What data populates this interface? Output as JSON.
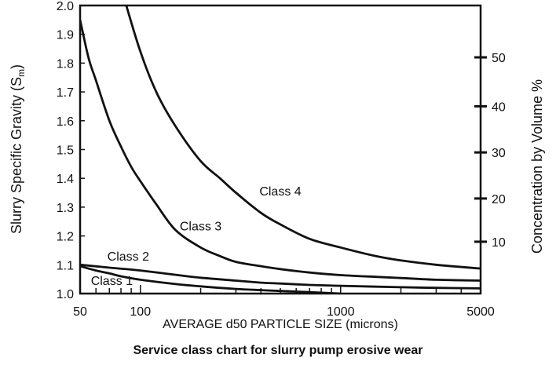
{
  "chart_data": {
    "type": "line",
    "xscale": "log",
    "xlim": [
      50,
      5000
    ],
    "ylim": [
      1.0,
      2.0
    ],
    "xlabel": "AVERAGE d50 PARTICLE SIZE (microns)",
    "ylabel_main": "Slurry Specific Gravity (S",
    "ylabel_sub": "m",
    "ylabel_close": ")",
    "y2label": "Concentration by Volume %",
    "caption": "Service class chart for slurry pump erosive wear",
    "x_ticks": [
      {
        "v": 50,
        "label": "50"
      },
      {
        "v": 60,
        "label": ""
      },
      {
        "v": 70,
        "label": ""
      },
      {
        "v": 80,
        "label": ""
      },
      {
        "v": 90,
        "label": ""
      },
      {
        "v": 100,
        "label": "100"
      },
      {
        "v": 200,
        "label": ""
      },
      {
        "v": 300,
        "label": ""
      },
      {
        "v": 400,
        "label": ""
      },
      {
        "v": 500,
        "label": ""
      },
      {
        "v": 600,
        "label": ""
      },
      {
        "v": 700,
        "label": ""
      },
      {
        "v": 800,
        "label": ""
      },
      {
        "v": 900,
        "label": ""
      },
      {
        "v": 1000,
        "label": "1000"
      },
      {
        "v": 2000,
        "label": ""
      },
      {
        "v": 3000,
        "label": ""
      },
      {
        "v": 4000,
        "label": ""
      },
      {
        "v": 5000,
        "label": "5000"
      }
    ],
    "y_ticks": [
      {
        "v": 1.0,
        "label": "1.0"
      },
      {
        "v": 1.1,
        "label": "1.1"
      },
      {
        "v": 1.2,
        "label": "1.2"
      },
      {
        "v": 1.3,
        "label": "1.3"
      },
      {
        "v": 1.4,
        "label": "1.4"
      },
      {
        "v": 1.5,
        "label": "1.5"
      },
      {
        "v": 1.6,
        "label": "1.6"
      },
      {
        "v": 1.7,
        "label": "1.7"
      },
      {
        "v": 1.8,
        "label": "1.8"
      },
      {
        "v": 1.9,
        "label": "1.9"
      },
      {
        "v": 2.0,
        "label": "2.0"
      }
    ],
    "y2_ticks": [
      {
        "sg": 1.18,
        "label": "10"
      },
      {
        "sg": 1.33,
        "label": "20"
      },
      {
        "sg": 1.49,
        "label": "30"
      },
      {
        "sg": 1.65,
        "label": "40"
      },
      {
        "sg": 1.82,
        "label": "50"
      }
    ],
    "series": [
      {
        "name": "Class 1",
        "label": {
          "x": 72,
          "y": 1.03
        },
        "points": [
          [
            50,
            1.095
          ],
          [
            60,
            1.08
          ],
          [
            70,
            1.07
          ],
          [
            80,
            1.06
          ],
          [
            100,
            1.048
          ],
          [
            150,
            1.033
          ],
          [
            200,
            1.025
          ],
          [
            300,
            1.016
          ],
          [
            400,
            1.012
          ],
          [
            500,
            1.009
          ],
          [
            700,
            1.005
          ],
          [
            1000,
            1.0
          ]
        ]
      },
      {
        "name": "Class 2",
        "label": {
          "x": 87,
          "y": 1.115
        },
        "points": [
          [
            50,
            1.1
          ],
          [
            70,
            1.09
          ],
          [
            100,
            1.08
          ],
          [
            150,
            1.065
          ],
          [
            200,
            1.055
          ],
          [
            300,
            1.045
          ],
          [
            400,
            1.038
          ],
          [
            500,
            1.035
          ],
          [
            700,
            1.03
          ],
          [
            1000,
            1.027
          ],
          [
            2000,
            1.022
          ],
          [
            3000,
            1.02
          ],
          [
            5000,
            1.018
          ]
        ]
      },
      {
        "name": "Class 3",
        "label": {
          "x": 200,
          "y": 1.22
        },
        "points": [
          [
            50,
            1.95
          ],
          [
            55,
            1.82
          ],
          [
            60,
            1.74
          ],
          [
            70,
            1.6
          ],
          [
            80,
            1.51
          ],
          [
            90,
            1.44
          ],
          [
            100,
            1.39
          ],
          [
            120,
            1.31
          ],
          [
            150,
            1.22
          ],
          [
            200,
            1.16
          ],
          [
            250,
            1.13
          ],
          [
            300,
            1.11
          ],
          [
            400,
            1.095
          ],
          [
            500,
            1.085
          ],
          [
            700,
            1.073
          ],
          [
            1000,
            1.064
          ],
          [
            1500,
            1.058
          ],
          [
            2000,
            1.054
          ],
          [
            3000,
            1.048
          ],
          [
            5000,
            1.045
          ]
        ]
      },
      {
        "name": "Class 4",
        "label": {
          "x": 500,
          "y": 1.34
        },
        "points": [
          [
            85,
            2.0
          ],
          [
            100,
            1.84
          ],
          [
            120,
            1.7
          ],
          [
            150,
            1.58
          ],
          [
            200,
            1.46
          ],
          [
            250,
            1.4
          ],
          [
            300,
            1.35
          ],
          [
            400,
            1.28
          ],
          [
            500,
            1.24
          ],
          [
            700,
            1.19
          ],
          [
            1000,
            1.16
          ],
          [
            1500,
            1.13
          ],
          [
            2000,
            1.115
          ],
          [
            3000,
            1.1
          ],
          [
            5000,
            1.087
          ]
        ]
      }
    ]
  }
}
